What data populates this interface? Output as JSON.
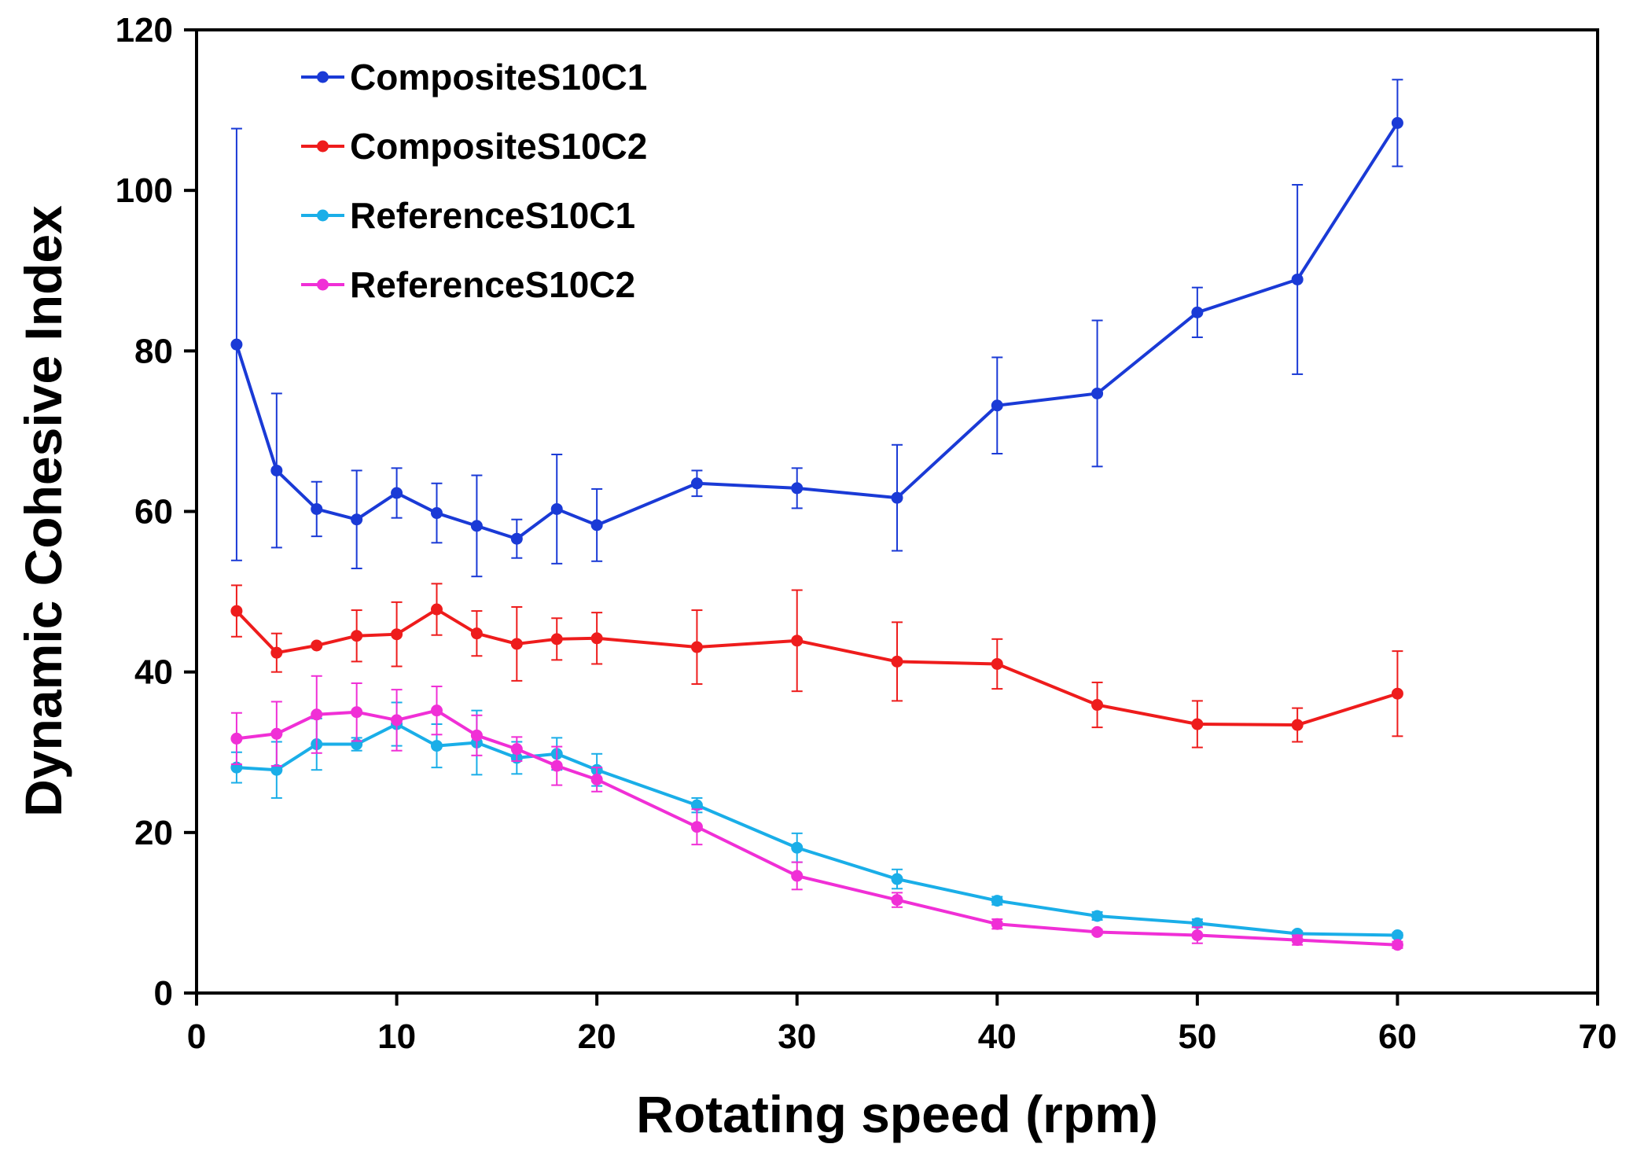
{
  "chart_data": {
    "type": "line",
    "title": "",
    "xlabel": "Rotating speed (rpm)",
    "ylabel": "Dynamic Cohesive Index",
    "xlim": [
      0,
      70
    ],
    "ylim": [
      0,
      120
    ],
    "xticks": [
      0,
      10,
      20,
      30,
      40,
      50,
      60,
      70
    ],
    "yticks": [
      0,
      20,
      40,
      60,
      80,
      100,
      120
    ],
    "grid": false,
    "legend_position": "top-left",
    "error_bars": true,
    "x": [
      2,
      4,
      6,
      8,
      10,
      12,
      14,
      16,
      18,
      20,
      25,
      30,
      35,
      40,
      45,
      50,
      55,
      60
    ],
    "series": [
      {
        "name": "CompositeS10C1",
        "color": "#1a3ad6",
        "values": [
          80.8,
          65.1,
          60.3,
          59.0,
          62.3,
          59.8,
          58.2,
          56.6,
          60.3,
          58.3,
          63.5,
          62.9,
          61.7,
          73.2,
          74.7,
          84.8,
          88.9,
          108.4
        ],
        "errors": [
          26.9,
          9.6,
          3.4,
          6.1,
          3.1,
          3.7,
          6.3,
          2.4,
          6.8,
          4.5,
          1.6,
          2.5,
          6.6,
          6.0,
          9.1,
          3.1,
          11.8,
          5.4
        ]
      },
      {
        "name": "CompositeS10C2",
        "color": "#ee1c1c",
        "values": [
          47.6,
          42.4,
          43.3,
          44.5,
          44.7,
          47.8,
          44.8,
          43.5,
          44.1,
          44.2,
          43.1,
          43.9,
          41.3,
          41.0,
          35.9,
          33.5,
          33.4,
          37.3
        ],
        "errors": [
          3.2,
          2.4,
          0.0,
          3.2,
          4.0,
          3.2,
          2.8,
          4.6,
          2.6,
          3.2,
          4.6,
          6.3,
          4.9,
          3.1,
          2.8,
          2.9,
          2.1,
          5.3
        ]
      },
      {
        "name": "ReferenceS10C1",
        "color": "#1aaee8",
        "values": [
          28.1,
          27.8,
          31.0,
          31.0,
          33.5,
          30.8,
          31.2,
          29.3,
          29.8,
          27.8,
          23.4,
          18.1,
          14.2,
          11.5,
          9.6,
          8.7,
          7.4,
          7.2
        ],
        "errors": [
          1.9,
          3.5,
          3.2,
          0.8,
          2.7,
          2.7,
          4.0,
          2.0,
          2.0,
          2.0,
          0.9,
          1.8,
          1.2,
          0.5,
          0.5,
          0.5,
          0.3,
          0.3
        ]
      },
      {
        "name": "ReferenceS10C2",
        "color": "#f02fd6",
        "values": [
          31.7,
          32.3,
          34.7,
          35.0,
          34.0,
          35.2,
          32.1,
          30.4,
          28.3,
          26.6,
          20.7,
          14.6,
          11.6,
          8.6,
          7.6,
          7.2,
          6.6,
          6.0
        ],
        "errors": [
          3.2,
          4.0,
          4.8,
          3.6,
          3.8,
          3.0,
          2.5,
          1.5,
          2.4,
          1.5,
          2.2,
          1.7,
          0.9,
          0.6,
          0.3,
          1.0,
          0.6,
          0.4
        ]
      }
    ]
  }
}
